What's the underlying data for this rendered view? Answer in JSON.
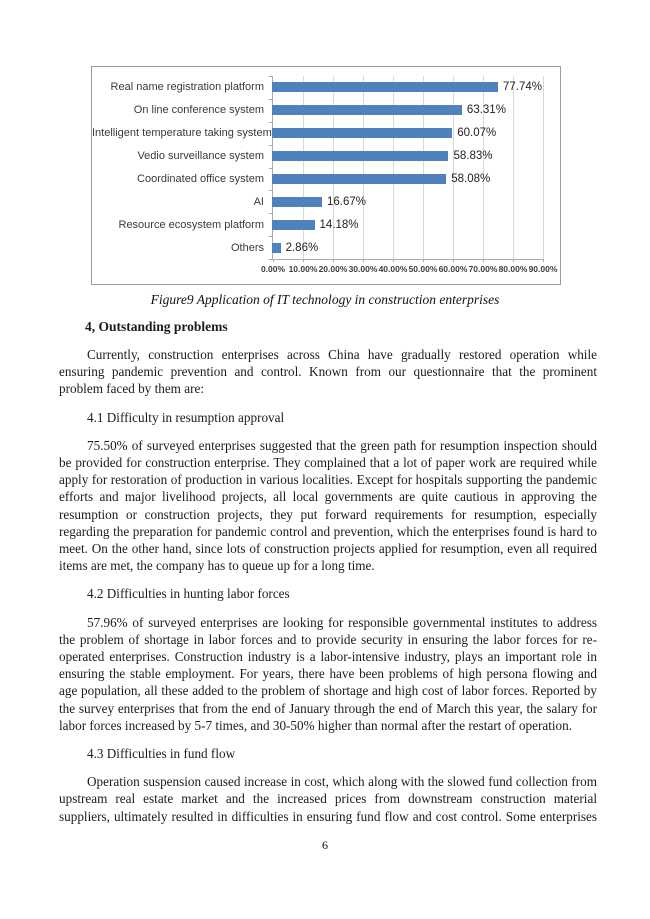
{
  "chart_data": {
    "type": "bar",
    "orientation": "horizontal",
    "title": "",
    "xlabel": "",
    "ylabel": "",
    "categories": [
      "Real name registration platform",
      "On line conference system",
      "Intelligent temperature taking system",
      "Vedio surveillance system",
      "Coordinated office system",
      "AI",
      "Resource ecosystem platform",
      "Others"
    ],
    "values": [
      77.74,
      63.31,
      60.07,
      58.83,
      58.08,
      16.67,
      14.18,
      2.86
    ],
    "data_labels": [
      "77.74%",
      "63.31%",
      "60.07%",
      "58.83%",
      "58.08%",
      "16.67%",
      "14.18%",
      "2.86%"
    ],
    "x_ticks": [
      "0.00%",
      "10.00%",
      "20.00%",
      "30.00%",
      "40.00%",
      "50.00%",
      "60.00%",
      "70.00%",
      "80.00%",
      "90.00%"
    ],
    "xlim": [
      0,
      90
    ],
    "grid": "vertical",
    "legend": "none",
    "bar_color": "#4f81bd"
  },
  "content": {
    "figure_caption": "Figure9 Application of IT technology in construction enterprises",
    "heading": "4, Outstanding problems",
    "paragraphs": [
      {
        "kind": "body",
        "text": "Currently, construction enterprises across China have gradually restored operation while ensuring pandemic prevention and control. Known from our questionnaire that the prominent problem faced by them are:"
      },
      {
        "kind": "subhead",
        "text": "4.1 Difficulty in resumption approval"
      },
      {
        "kind": "body",
        "text": "75.50% of surveyed enterprises suggested that the green path for resumption inspection should be provided for construction enterprise. They complained that a lot of paper work are required while apply for restoration of production in various localities. Except for hospitals supporting the pandemic efforts and major livelihood projects, all local governments are quite cautious in approving the resumption or construction projects, they put forward requirements for resumption, especially regarding the preparation for pandemic control and prevention, which the enterprises found is hard to meet. On the other hand, since lots of construction projects applied for resumption, even all required items are met, the company has to queue up for a long time."
      },
      {
        "kind": "subhead",
        "text": "4.2 Difficulties in hunting labor forces"
      },
      {
        "kind": "body",
        "text": "57.96% of surveyed enterprises are looking for responsible governmental institutes to address the problem of shortage in labor forces and to provide security in ensuring the labor forces for re-operated enterprises. Construction industry is a labor-intensive industry, plays an important role in ensuring the stable employment. For years, there have been problems of high persona flowing and age population, all these added to the problem of shortage and high cost of labor forces. Reported by the survey enterprises that from the end of January through the end of March this year, the salary for labor forces increased by 5-7 times, and 30-50% higher than normal after the restart of operation."
      },
      {
        "kind": "subhead",
        "text": "4.3 Difficulties in fund flow"
      },
      {
        "kind": "body-cont",
        "text": "Operation suspension caused increase in cost, which along with the slowed fund collection from upstream real estate market and the increased prices from downstream construction material suppliers, ultimately resulted in difficulties in ensuring fund flow and cost control. Some enterprises"
      }
    ],
    "page_number": "6"
  }
}
